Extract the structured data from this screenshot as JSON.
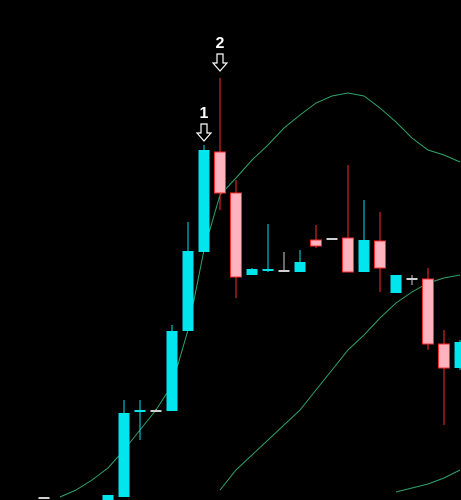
{
  "chart_data": {
    "type": "candlestick",
    "categories": [
      null,
      null,
      null,
      null,
      null,
      null,
      null,
      null,
      null,
      null,
      null,
      null,
      null,
      null,
      null,
      null,
      null,
      null,
      null,
      null,
      null,
      null,
      null,
      null,
      null,
      null,
      null,
      null,
      null
    ],
    "open": [
      null,
      null,
      3,
      null,
      null,
      null,
      0,
      3,
      88,
      90,
      89,
      169,
      248,
      348,
      307,
      225,
      230,
      230,
      228,
      260,
      262,
      262,
      228,
      259,
      207,
      222,
      221,
      156,
      132
    ],
    "high": [
      null,
      null,
      3,
      null,
      null,
      null,
      5,
      100,
      100,
      91,
      175,
      278,
      355,
      422,
      320,
      232,
      276,
      248,
      250,
      275,
      262,
      335,
      300,
      288,
      225,
      225,
      232,
      170,
      160
    ],
    "low": [
      null,
      null,
      3,
      null,
      null,
      null,
      0,
      3,
      60,
      89,
      89,
      169,
      248,
      290,
      202,
      225,
      228,
      228,
      228,
      252,
      262,
      228,
      228,
      208,
      207,
      215,
      150,
      75,
      130
    ],
    "close": [
      null,
      null,
      3,
      null,
      null,
      null,
      5,
      87,
      90,
      90,
      169,
      249,
      350,
      307,
      223,
      231,
      231,
      230,
      238,
      254,
      262,
      228,
      260,
      232,
      225,
      222,
      156,
      132,
      158
    ],
    "up_color": "#00e5ee",
    "down_color": "#ffb3bf",
    "down_wick_color": "#ff2a2a",
    "flat_color": "#d0d0d0",
    "series": [
      {
        "color": "#2fa36b",
        "values": [
          null,
          null,
          null,
          3,
          10,
          20,
          32,
          50,
          70,
          90,
          115,
          170,
          250,
          305,
          322,
          340,
          355,
          372,
          385,
          397,
          404,
          407,
          404,
          392,
          378,
          362,
          350,
          345,
          338
        ]
      },
      {
        "color": "#2fa36b",
        "values": [
          null,
          null,
          null,
          null,
          null,
          null,
          null,
          null,
          null,
          null,
          null,
          null,
          null,
          10,
          30,
          45,
          60,
          75,
          90,
          110,
          130,
          150,
          165,
          182,
          197,
          208,
          217,
          222,
          225
        ]
      },
      {
        "color": "#2fa36b",
        "values": [
          null,
          null,
          null,
          null,
          null,
          null,
          null,
          null,
          null,
          null,
          null,
          null,
          null,
          null,
          null,
          null,
          null,
          null,
          null,
          null,
          null,
          null,
          null,
          null,
          8,
          12,
          16,
          22,
          30
        ]
      }
    ],
    "ylim": [
      0,
      500
    ],
    "annotations": [
      "1",
      "2"
    ]
  }
}
